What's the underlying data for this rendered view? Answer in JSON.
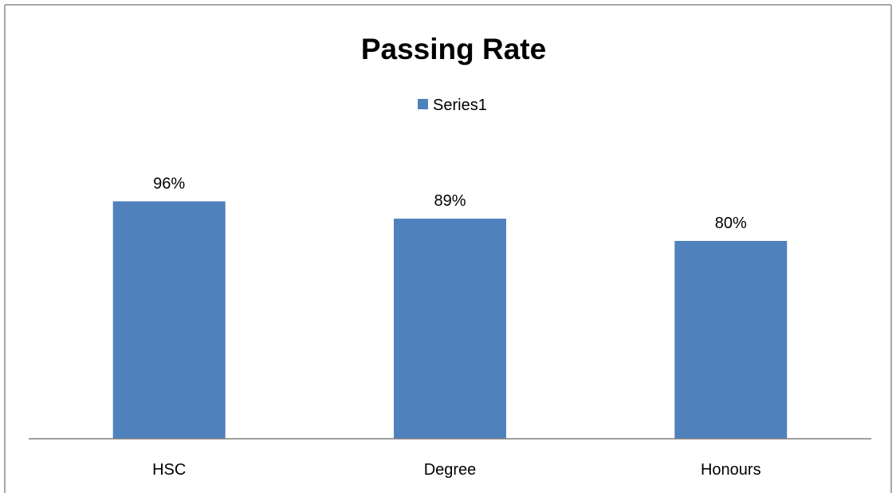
{
  "chart_data": {
    "type": "bar",
    "title": "Passing Rate",
    "categories": [
      "HSC",
      "Degree",
      "Honours"
    ],
    "series": [
      {
        "name": "Series1",
        "values": [
          96,
          89,
          80
        ],
        "value_labels": [
          "96%",
          "89%",
          "80%"
        ],
        "color": "#4F81BD"
      }
    ],
    "ylim": [
      0,
      100
    ],
    "grid": false,
    "legend_position": "top-center"
  }
}
